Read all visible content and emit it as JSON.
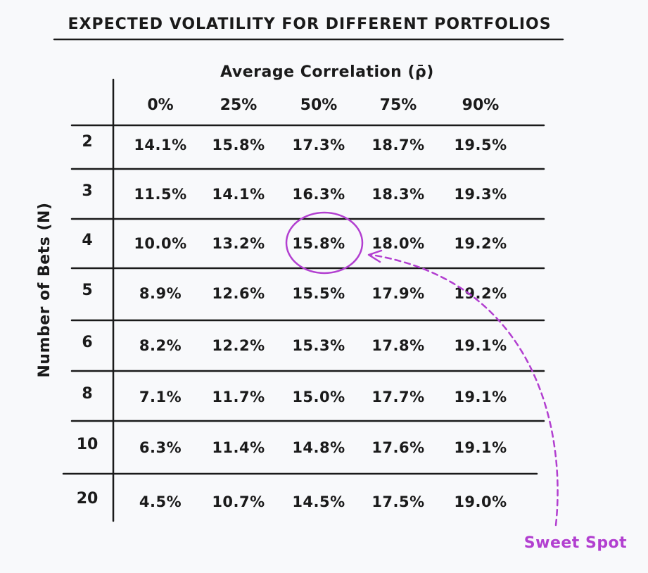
{
  "chart_data": {
    "type": "table",
    "title": "EXPECTED VOLATILITY FOR DIFFERENT PORTFOLIOS",
    "xlabel": "Average Correlation (ρ̄)",
    "ylabel": "Number of Bets (N)",
    "columns": [
      "0%",
      "25%",
      "50%",
      "75%",
      "90%"
    ],
    "rows": [
      {
        "label": "2",
        "values": [
          "14.1%",
          "15.8%",
          "17.3%",
          "18.7%",
          "19.5%"
        ]
      },
      {
        "label": "3",
        "values": [
          "11.5%",
          "14.1%",
          "16.3%",
          "18.3%",
          "19.3%"
        ]
      },
      {
        "label": "4",
        "values": [
          "10.0%",
          "13.2%",
          "15.8%",
          "18.0%",
          "19.2%"
        ]
      },
      {
        "label": "5",
        "values": [
          "8.9%",
          "12.6%",
          "15.5%",
          "17.9%",
          "19.2%"
        ]
      },
      {
        "label": "6",
        "values": [
          "8.2%",
          "12.2%",
          "15.3%",
          "17.8%",
          "19.1%"
        ]
      },
      {
        "label": "8",
        "values": [
          "7.1%",
          "11.7%",
          "15.0%",
          "17.7%",
          "19.1%"
        ]
      },
      {
        "label": "10",
        "values": [
          "6.3%",
          "11.4%",
          "14.8%",
          "17.6%",
          "19.1%"
        ]
      },
      {
        "label": "20",
        "values": [
          "4.5%",
          "10.7%",
          "14.5%",
          "17.5%",
          "19.0%"
        ]
      }
    ],
    "highlight": {
      "row": "4",
      "column": "50%",
      "value": "15.8%",
      "annotation": "Sweet Spot"
    },
    "colors": {
      "text": "#1a1a1a",
      "lines": "#1a1a1a",
      "highlight": "#b23fd0",
      "background": "#f8f9fb"
    }
  }
}
